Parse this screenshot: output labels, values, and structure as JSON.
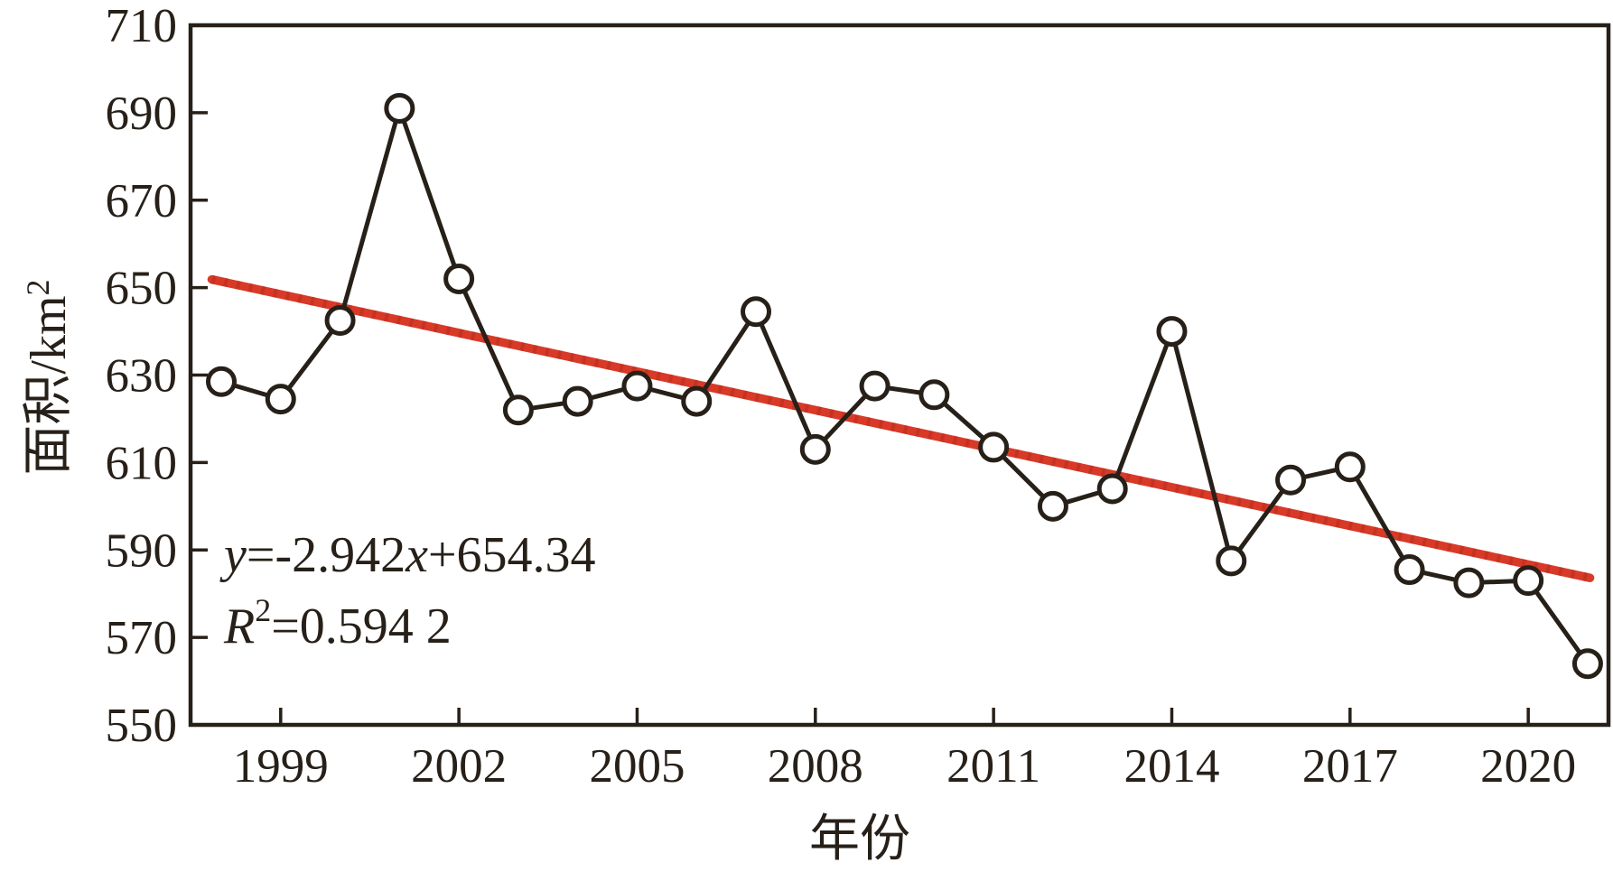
{
  "figure": {
    "y_axis": {
      "title_base": "面积/km",
      "title_sup": "2",
      "tick_labels": [
        "550",
        "570",
        "590",
        "610",
        "630",
        "650",
        "670",
        "690",
        "710"
      ]
    },
    "x_axis": {
      "title": "年份",
      "tick_labels": [
        "1999",
        "2002",
        "2005",
        "2008",
        "2011",
        "2014",
        "2017",
        "2020"
      ]
    },
    "annotation": {
      "eq_y": "y",
      "eq_mid": "=-2.942",
      "eq_x": "x",
      "eq_tail": "+654.34",
      "r_base": "R",
      "r_sup": "2",
      "r_tail": "=0.594 2"
    },
    "colors": {
      "ink": "#272019",
      "trend_red": "#d93a28",
      "trend_red_dark": "#b02a1b",
      "marker_fill": "#ffffff",
      "background": "#ffffff"
    }
  },
  "chart_data": {
    "type": "line",
    "title": "",
    "xlabel": "年份",
    "ylabel": "面积/km²",
    "x": [
      1998,
      1999,
      2000,
      2001,
      2002,
      2003,
      2004,
      2005,
      2006,
      2007,
      2008,
      2009,
      2010,
      2011,
      2012,
      2013,
      2014,
      2015,
      2016,
      2017,
      2018,
      2019,
      2020,
      2021
    ],
    "series": [
      {
        "name": "面积",
        "values": [
          628.5,
          624.5,
          642.5,
          691,
          652,
          622,
          624,
          627.5,
          624,
          644.5,
          613,
          627.5,
          625.5,
          613.5,
          600,
          604,
          640,
          587.5,
          606,
          609,
          585.5,
          582.5,
          583,
          564
        ]
      }
    ],
    "ylim": [
      550,
      710
    ],
    "ytick_step": 20,
    "yticks": [
      550,
      570,
      590,
      610,
      630,
      650,
      670,
      690,
      710
    ],
    "xticks": [
      1999,
      2002,
      2005,
      2008,
      2011,
      2014,
      2017,
      2020
    ],
    "grid": false,
    "legend": "none",
    "marker": "open-circle",
    "trendline": {
      "equation": "y=-2.942x+654.34",
      "r2_text": "R²=0.594 2",
      "r_squared": 0.5942,
      "slope": -2.942,
      "intercept": 654.34,
      "first_year": 1998,
      "first_year_index": 1
    }
  }
}
